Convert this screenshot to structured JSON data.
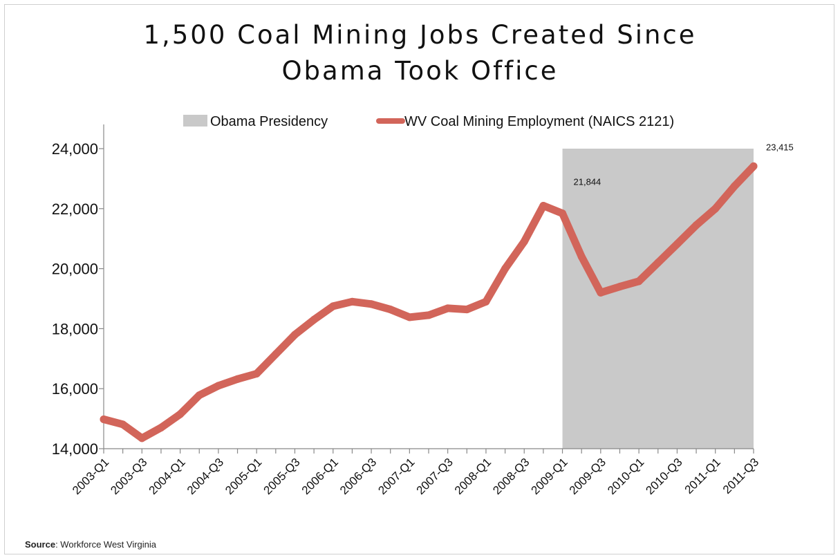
{
  "chart_data": {
    "type": "line",
    "title_line1": "1,500 Coal Mining Jobs Created Since",
    "title_line2": "Obama Took Office",
    "legend": {
      "placement": "top",
      "shaded_label": "Obama Presidency",
      "line_label": "WV Coal Mining Employment (NAICS 2121)"
    },
    "colors": {
      "line": "#d2655a",
      "shade": "#c9c9c9"
    },
    "ylim": [
      14000,
      24000
    ],
    "yticks": [
      14000,
      16000,
      18000,
      20000,
      22000,
      24000
    ],
    "ytick_labels": [
      "14,000",
      "16,000",
      "18,000",
      "20,000",
      "22,000",
      "24,000"
    ],
    "x": [
      "2003-Q1",
      "2003-Q2",
      "2003-Q3",
      "2003-Q4",
      "2004-Q1",
      "2004-Q2",
      "2004-Q3",
      "2004-Q4",
      "2005-Q1",
      "2005-Q2",
      "2005-Q3",
      "2005-Q4",
      "2006-Q1",
      "2006-Q2",
      "2006-Q3",
      "2006-Q4",
      "2007-Q1",
      "2007-Q2",
      "2007-Q3",
      "2007-Q4",
      "2008-Q1",
      "2008-Q2",
      "2008-Q3",
      "2008-Q4",
      "2009-Q1",
      "2009-Q2",
      "2009-Q3",
      "2009-Q4",
      "2010-Q1",
      "2010-Q2",
      "2010-Q3",
      "2010-Q4",
      "2011-Q1",
      "2011-Q2",
      "2011-Q3"
    ],
    "xtick_labels": [
      "2003-Q1",
      "2003-Q3",
      "2004-Q1",
      "2004-Q3",
      "2005-Q1",
      "2005-Q3",
      "2006-Q1",
      "2006-Q3",
      "2007-Q1",
      "2007-Q3",
      "2008-Q1",
      "2008-Q3",
      "2009-Q1",
      "2009-Q3",
      "2010-Q1",
      "2010-Q3",
      "2011-Q1",
      "2011-Q3"
    ],
    "series": [
      {
        "name": "WV Coal Mining Employment (NAICS 2121)",
        "values": [
          14980,
          14810,
          14350,
          14700,
          15150,
          15780,
          16100,
          16320,
          16500,
          17150,
          17800,
          18300,
          18750,
          18900,
          18820,
          18640,
          18380,
          18450,
          18680,
          18640,
          18900,
          20000,
          20900,
          22100,
          21844,
          20400,
          19200,
          19400,
          19580,
          20200,
          20820,
          21450,
          22000,
          22750,
          23415
        ]
      }
    ],
    "shaded_range": [
      "2009-Q1",
      "2011-Q3"
    ],
    "annotations": [
      {
        "x": "2009-Q1",
        "value": 21844,
        "label": "21,844"
      },
      {
        "x": "2011-Q3",
        "value": 23415,
        "label": "23,415"
      }
    ],
    "source_label": "Source",
    "source_text": ": Workforce West Virginia"
  }
}
